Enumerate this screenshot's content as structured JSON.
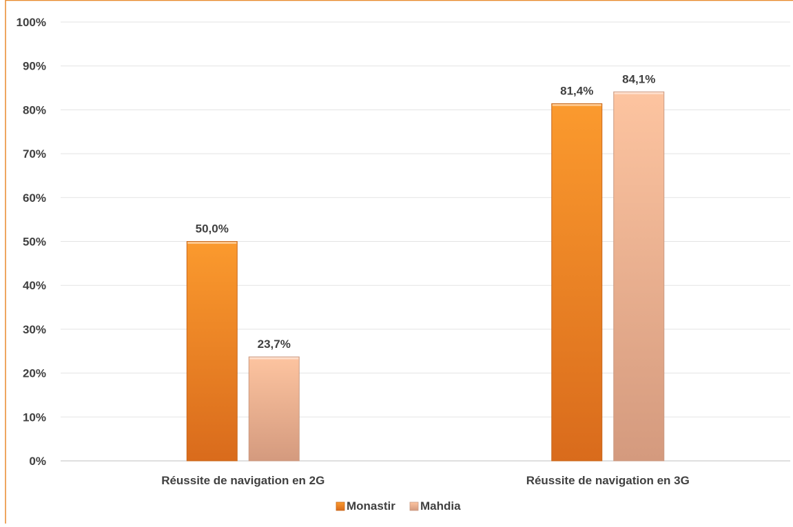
{
  "chart_data": {
    "type": "bar",
    "categories": [
      "Réussite de navigation en 2G",
      "Réussite de navigation en 3G"
    ],
    "series": [
      {
        "name": "Monastir",
        "values": [
          50.0,
          81.4
        ],
        "labels": [
          "50,0%",
          "81,4%"
        ],
        "color": "#F28A20"
      },
      {
        "name": "Mahdia",
        "values": [
          23.7,
          84.1
        ],
        "labels": [
          "23,7%",
          "84,1%"
        ],
        "color": "#F6B896"
      }
    ],
    "ylim": [
      0,
      100
    ],
    "yticks": [
      "0%",
      "10%",
      "20%",
      "30%",
      "40%",
      "50%",
      "60%",
      "70%",
      "80%",
      "90%",
      "100%"
    ],
    "grid": true,
    "legend_position": "bottom",
    "frame_color": "#E8892B"
  }
}
